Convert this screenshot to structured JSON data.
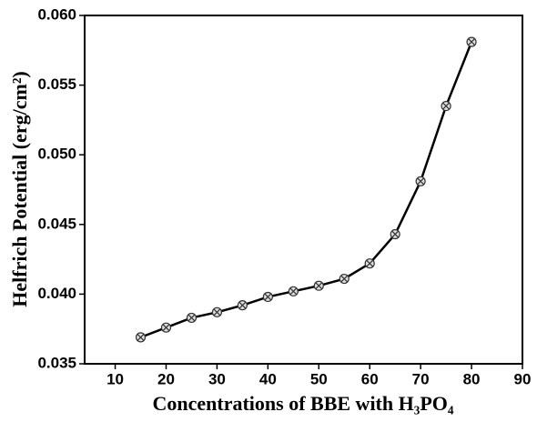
{
  "chart_data": {
    "type": "line",
    "xlabel": "Concentrations of BBE with H₃PO₄",
    "ylabel": "Helfrich Potential (erg/cm²)",
    "x": [
      15,
      20,
      25,
      30,
      35,
      40,
      45,
      50,
      55,
      60,
      65,
      70,
      75,
      80
    ],
    "series": [
      {
        "color": "#000000",
        "values": [
          0.0369,
          0.0376,
          0.0383,
          0.0387,
          0.0392,
          0.0398,
          0.0402,
          0.0406,
          0.0411,
          0.0422,
          0.0443,
          0.0481,
          0.0535,
          0.0581
        ]
      }
    ],
    "xlim": [
      4,
      90
    ],
    "xticks": [
      10,
      20,
      30,
      40,
      50,
      60,
      70,
      80,
      90
    ],
    "ylim": [
      0.035,
      0.06
    ],
    "yticks": [
      0.035,
      {
        "value": 0.04,
        "label": "0.040"
      },
      0.045,
      {
        "value": 0.05,
        "label": "0.050"
      },
      0.055,
      {
        "value": 0.06,
        "label": "0.060"
      }
    ]
  }
}
